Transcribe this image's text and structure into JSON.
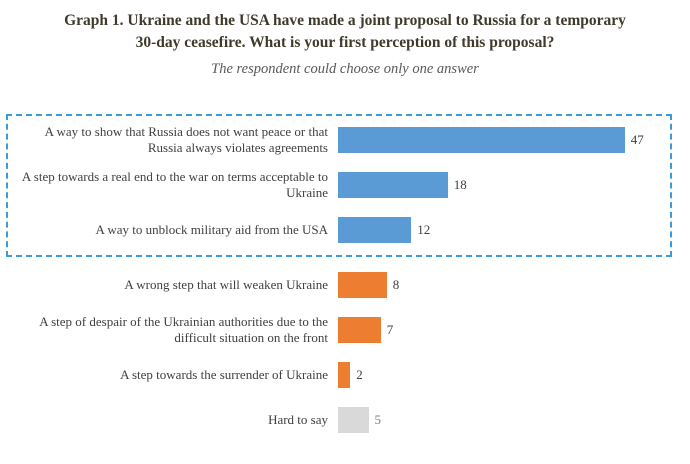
{
  "chart_data": {
    "type": "bar",
    "orientation": "horizontal",
    "title": "Graph 1. Ukraine and the USA have made a joint proposal to Russia for a temporary 30-day ceasefire. What is your first perception of this proposal?",
    "subtitle": "The respondent could choose only one answer",
    "categories": [
      "A way to show that Russia does not want peace or that Russia always violates agreements",
      "A step towards a real end to the war on terms acceptable to Ukraine",
      "A way to unblock military aid from the USA",
      "A wrong step that will weaken Ukraine",
      "A step of despair of the Ukrainian authorities due to the difficult situation on the front",
      "A step towards the surrender of Ukraine",
      "Hard to say"
    ],
    "values": [
      47,
      18,
      12,
      8,
      7,
      2,
      5
    ],
    "bar_colors": [
      "#5B9BD5",
      "#5B9BD5",
      "#5B9BD5",
      "#ED7D31",
      "#ED7D31",
      "#ED7D31",
      "#D9D9D9"
    ],
    "value_label_colors": [
      "#404040",
      "#404040",
      "#404040",
      "#404040",
      "#404040",
      "#404040",
      "#7F7F7F"
    ],
    "xlim": [
      0,
      50
    ],
    "grid": false,
    "legend": "none",
    "highlight_rows": [
      0,
      1,
      2
    ],
    "highlight_border_color": "#3D9BD9"
  },
  "colors": {
    "blue": "#5B9BD5",
    "orange": "#ED7D31",
    "gray": "#D9D9D9",
    "title_text": "#3F3A2B",
    "subtitle_text": "#595959"
  }
}
